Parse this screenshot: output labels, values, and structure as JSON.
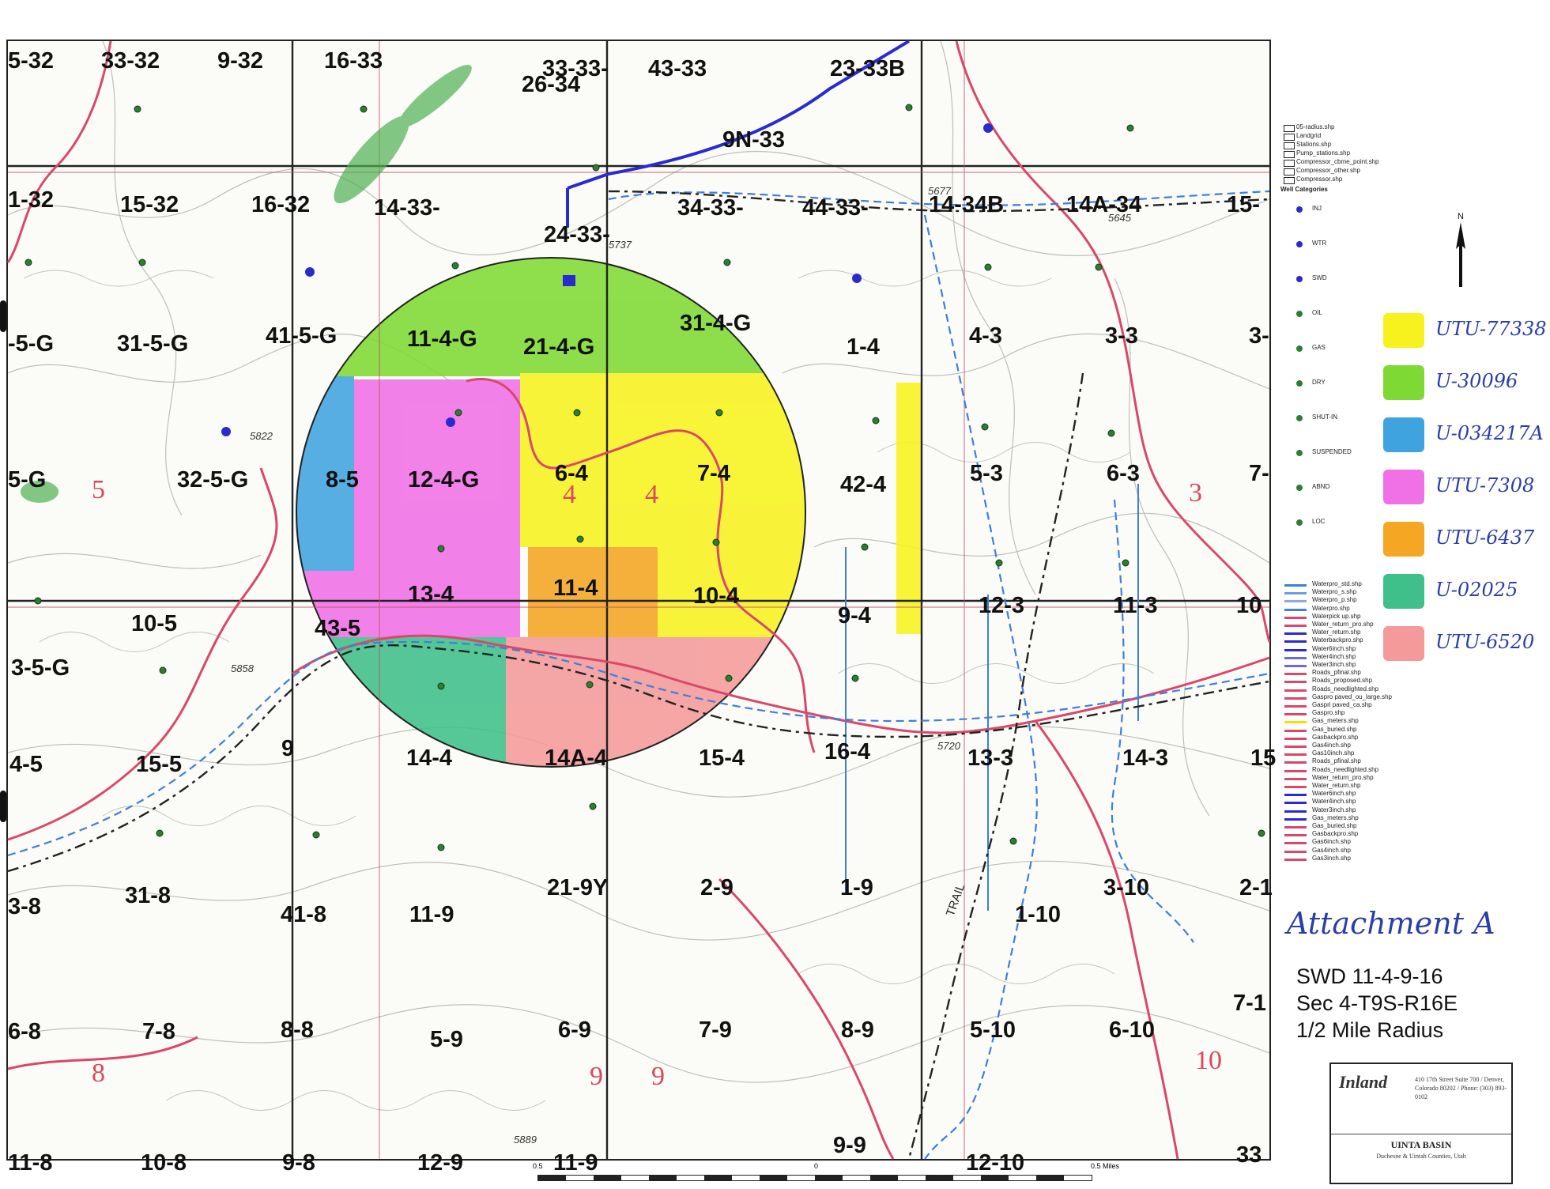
{
  "map": {
    "well_labels": [
      "5-32",
      "33-32",
      "9-32",
      "16-33",
      "33-33-",
      "43-33",
      "23-33B",
      "26-34",
      "9N-33",
      "1-32",
      "15-32",
      "16-32",
      "14-33-",
      "34-33-",
      "44-33-",
      "14-34B",
      "14A-34",
      "15-",
      "24-33-",
      "-5-G",
      "31-5-G",
      "41-5-G",
      "11-4-G",
      "21-4-G",
      "31-4-G",
      "1-4",
      "4-3",
      "3-3",
      "3-",
      "5-G",
      "32-5-G",
      "8-5",
      "12-4-G",
      "6-4",
      "7-4",
      "42-4",
      "5-3",
      "6-3",
      "7-",
      "10-5",
      "43-5",
      "13-4",
      "11-4",
      "10-4",
      "9-4",
      "12-3",
      "11-3",
      "10",
      "3-5-G",
      "4-5",
      "15-5",
      "9",
      "14-4",
      "14A-4",
      "15-4",
      "16-4",
      "13-3",
      "14-3",
      "15",
      "21-9Y",
      "2-9",
      "1-9",
      "3-10",
      "2-1",
      "3-8",
      "31-8",
      "41-8",
      "11-9",
      "1-10",
      "6-8",
      "7-8",
      "8-8",
      "5-9",
      "6-9",
      "7-9",
      "8-9",
      "5-10",
      "6-10",
      "7-1",
      "11-8",
      "10-8",
      "9-8",
      "12-9",
      "11-9",
      "9-9",
      "12-10",
      "33"
    ],
    "section_numbers": [
      "5",
      "4",
      "4",
      "3",
      "8",
      "9",
      "9",
      "10"
    ],
    "elevations": [
      "5677",
      "5645",
      "5737",
      "5822",
      "5858",
      "5720",
      "5889"
    ],
    "trail_label": "TRAIL",
    "scale": {
      "left": "0.5",
      "mid": "0",
      "right": "0.5 Miles"
    }
  },
  "legend": {
    "layers": [
      "05-radius.shp",
      "Landgrid",
      "Stations.shp",
      "Pump_stations.shp",
      "Compressor_cbme_point.shp",
      "Compressor_other.shp",
      "Compressor.shp"
    ],
    "well_categories_title": "Well Categories",
    "well_categories": [
      "INJ",
      "WTR",
      "SWD",
      "OIL",
      "GAS",
      "DRY",
      "SHUT-IN",
      "SUSPENDED",
      "ABND",
      "LOC"
    ],
    "line_layers": [
      "Waterpro_std.shp",
      "Waterpro_s.shp",
      "Waterpro_p.shp",
      "Waterpro.shp",
      "Waterpick up.shp",
      "Water_return_pro.shp",
      "Water_return.shp",
      "Waterbackpro.shp",
      "Water6inch.shp",
      "Water4inch.shp",
      "Water3inch.shp",
      "Roads_pfinal.shp",
      "Roads_proposed.shp",
      "Roads_needlighted.shp",
      "Gaspro paved_ou_large.shp",
      "Gaspri paved_ca.shp",
      "Gaspro.shp",
      "Gas_meters.shp",
      "Gas_buried.shp",
      "Gasbackpro.shp",
      "Gas4inch.shp",
      "Gas10inch.shp",
      "Roads_pfinal.shp",
      "Roads_needlighted.shp",
      "Water_return_pro.shp",
      "Water_return.shp",
      "Water6inch.shp",
      "Water4inch.shp",
      "Water3inch.shp",
      "Gas_meters.shp",
      "Gas_buried.shp",
      "Gasbackpro.shp",
      "Gas6inch.shp",
      "Gas4inch.shp",
      "Gas3inch.shp"
    ],
    "leases": [
      {
        "color": "#f7f21e",
        "label": "UTU-77338"
      },
      {
        "color": "#7fd934",
        "label": "U-30096"
      },
      {
        "color": "#3fa3e0",
        "label": "U-034217A"
      },
      {
        "color": "#f070e6",
        "label": "UTU-7308"
      },
      {
        "color": "#f5a623",
        "label": "UTU-6437"
      },
      {
        "color": "#3fbf8a",
        "label": "U-02025"
      },
      {
        "color": "#f49a9a",
        "label": "UTU-6520"
      }
    ]
  },
  "annotation": "Attachment A",
  "title_block": {
    "line1": "SWD 11-4-9-16",
    "line2": "Sec 4-T9S-R16E",
    "line3": "1/2 Mile Radius"
  },
  "company": {
    "logo": "Inland",
    "address": "410 17th Street Suite 700 / Denver, Colorado 80202 / Phone: (303) 893-0102",
    "region": "UINTA BASIN",
    "subtitle": "Duchesne & Uintah Counties, Utah"
  },
  "colors": {
    "road": "#d9486a",
    "water_line": "#3f7fd6",
    "gas_line": "#2a2ad0",
    "gridline": "#222222",
    "contour": "#6b6b6b",
    "well_dot": "#2e7d32"
  }
}
